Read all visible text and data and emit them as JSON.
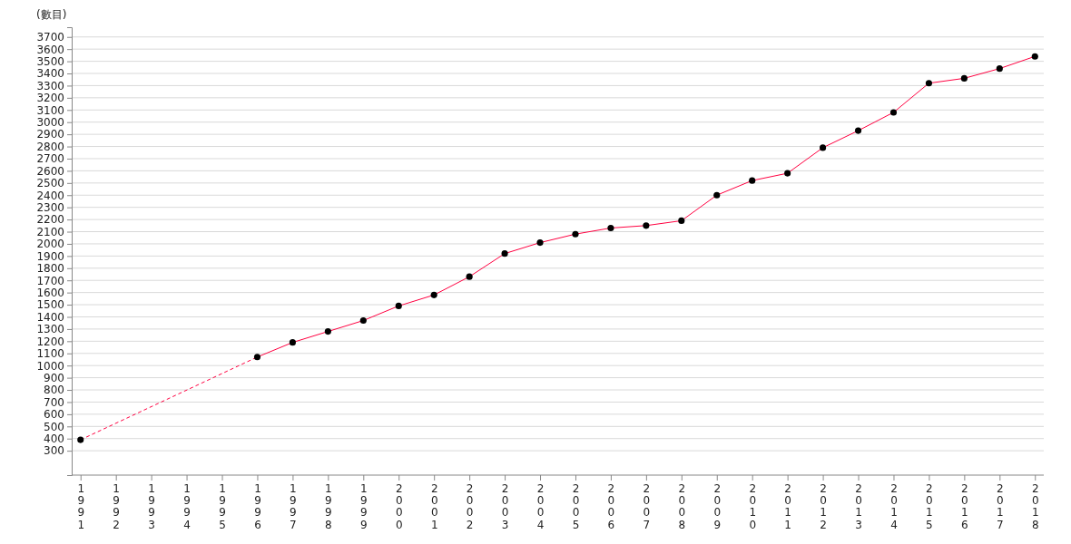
{
  "chart_data": {
    "type": "line",
    "ylabel": "(數目)",
    "categories": [
      "1991",
      "1992",
      "1993",
      "1994",
      "1995",
      "1996",
      "1997",
      "1998",
      "1999",
      "2000",
      "2001",
      "2002",
      "2003",
      "2004",
      "2005",
      "2006",
      "2007",
      "2008",
      "2009",
      "2010",
      "2011",
      "2012",
      "2013",
      "2014",
      "2015",
      "2016",
      "2017",
      "2018"
    ],
    "series": [
      {
        "color": "#ff0040",
        "line_style": "dashed",
        "values": [
          390,
          null,
          null,
          null,
          null,
          1070,
          null,
          null,
          null,
          null,
          null,
          null,
          null,
          null,
          null,
          null,
          null,
          null,
          null,
          null,
          null,
          null,
          null,
          null,
          null,
          null,
          null,
          null
        ]
      },
      {
        "color": "#ff0040",
        "line_style": "solid",
        "values": [
          null,
          null,
          null,
          null,
          null,
          1070,
          1190,
          1280,
          1370,
          1490,
          1580,
          1730,
          1920,
          2010,
          2080,
          2130,
          2150,
          2190,
          2400,
          2520,
          2580,
          2790,
          2930,
          3080,
          3320,
          3360,
          3440,
          3540
        ]
      },
      {
        "type": "scatter",
        "color": "#000000",
        "marker": "circle",
        "values": [
          390,
          null,
          null,
          null,
          null,
          1070,
          1190,
          1280,
          1370,
          1490,
          1580,
          1730,
          1920,
          2010,
          2080,
          2130,
          2150,
          2190,
          2400,
          2520,
          2580,
          2790,
          2930,
          3080,
          3320,
          3360,
          3440,
          3540
        ]
      }
    ],
    "ylim": [
      100,
      3780
    ],
    "yticks": [
      300,
      400,
      500,
      600,
      700,
      800,
      900,
      1000,
      1100,
      1200,
      1300,
      1400,
      1500,
      1600,
      1700,
      1800,
      1900,
      2000,
      2100,
      2200,
      2300,
      2400,
      2500,
      2600,
      2700,
      2800,
      2900,
      3000,
      3100,
      3200,
      3300,
      3400,
      3500,
      3600,
      3700
    ],
    "grid": "y"
  }
}
